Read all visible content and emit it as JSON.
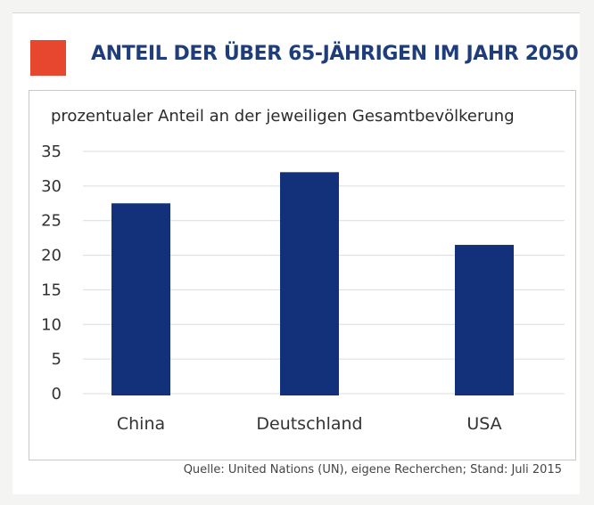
{
  "header": {
    "title": "ANTEIL DER ÜBER 65-JÄHRIGEN IM JAHR 2050",
    "accent_color": "#e8472f",
    "title_color": "#1f3d7a"
  },
  "source": "Quelle: United Nations (UN), eigene Recherchen; Stand: Juli 2015",
  "chart_data": {
    "type": "bar",
    "title": "ANTEIL DER ÜBER 65-JÄHRIGEN IM JAHR 2050",
    "subtitle": "prozentualer Anteil an der jeweiligen Gesamtbevölkerung",
    "categories": [
      "China",
      "Deutschland",
      "USA"
    ],
    "values": [
      27.5,
      32,
      21.5
    ],
    "ylim": [
      0,
      35
    ],
    "yticks": [
      "35",
      "30",
      "25",
      "20",
      "15",
      "10",
      "5",
      "0"
    ],
    "xlabel": "",
    "ylabel": "",
    "grid": true,
    "bar_color": "#13307a",
    "grid_color": "#dcdcdc"
  }
}
